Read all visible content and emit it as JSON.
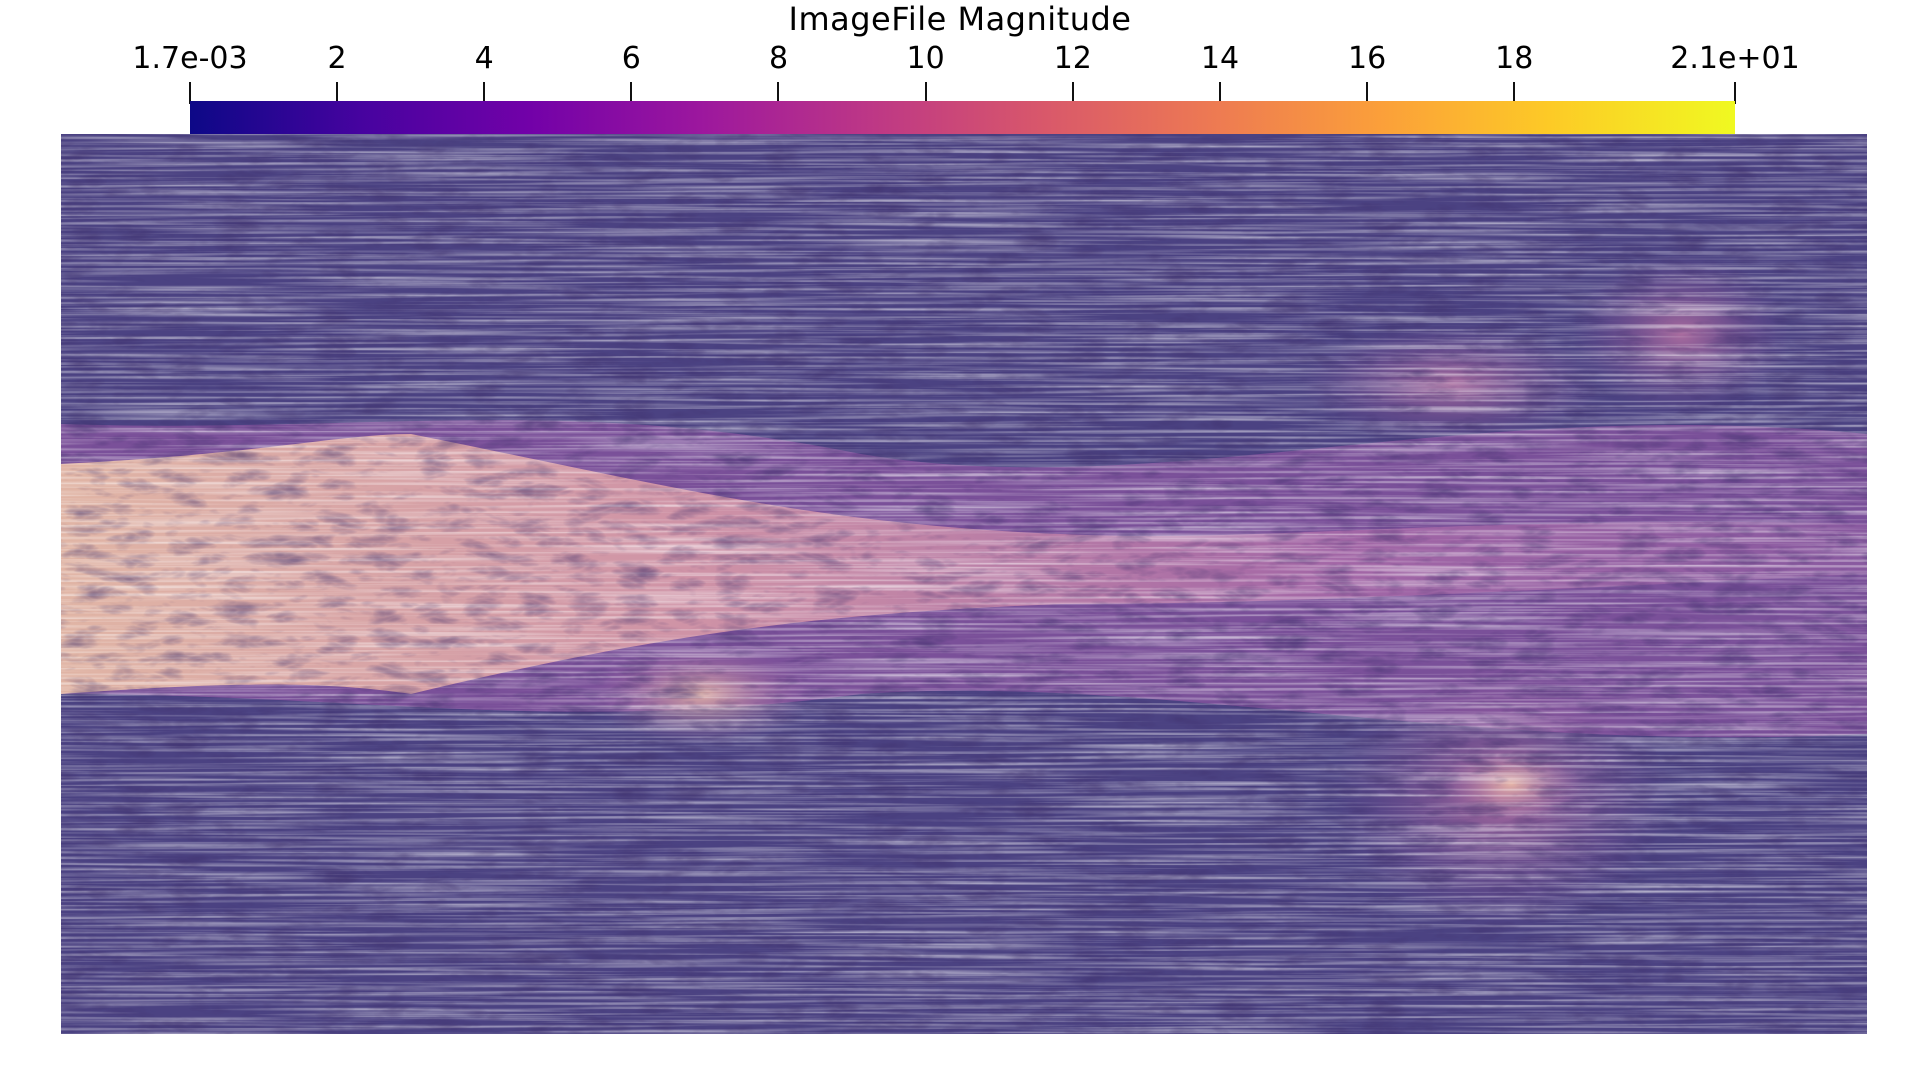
{
  "scalar_bar": {
    "title": "ImageFile Magnitude",
    "min_label": "1.7e-03",
    "max_label": "2.1e+01",
    "range": [
      0.0017,
      21
    ],
    "tick_labels": [
      "1.7e-03",
      "2",
      "4",
      "6",
      "8",
      "10",
      "12",
      "14",
      "16",
      "18",
      "2.1e+01"
    ],
    "tick_values": [
      0.0017,
      2,
      4,
      6,
      8,
      10,
      12,
      14,
      16,
      18,
      21
    ],
    "colormap": [
      "#0d0887",
      "#46039f",
      "#7201a8",
      "#9c179e",
      "#bd3786",
      "#d8576b",
      "#ed7953",
      "#fb9f3a",
      "#fdca26",
      "#f0f921"
    ]
  },
  "visualization": {
    "type": "line-integral-convolution",
    "background_tone": "#4a4280",
    "jet_core_tone": "#e9b7a0",
    "mid_tone": "#9a5aa0"
  }
}
